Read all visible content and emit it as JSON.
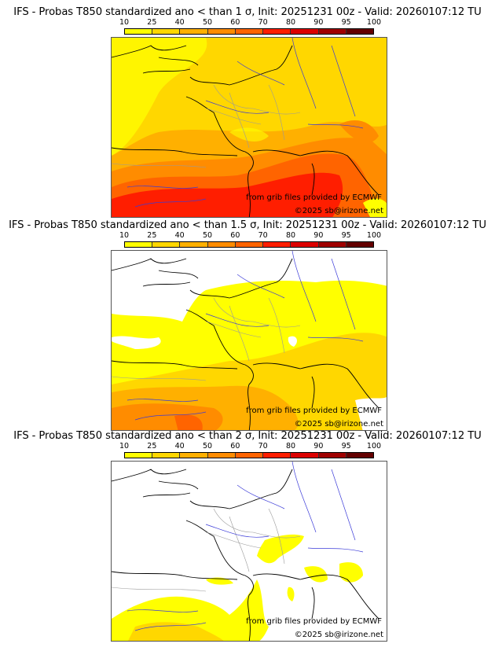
{
  "colorbar": {
    "ticks": [
      "10",
      "25",
      "40",
      "50",
      "60",
      "70",
      "80",
      "90",
      "95",
      "100"
    ],
    "colors": [
      "#ffff00",
      "#ffd700",
      "#ffb000",
      "#ff8c00",
      "#ff6400",
      "#ff1e00",
      "#dc0000",
      "#a00000",
      "#640000"
    ]
  },
  "panels": [
    {
      "title": "IFS - Probas T850  standardized ano < than 1 σ, Init: 20251231 00z - Valid: 20260107:12 TU",
      "threshold_sigma": "1",
      "credit_source": "from grib files provided by ECMWF",
      "credit_copyright": "©2025 sb@irizone.net"
    },
    {
      "title": "IFS - Probas T850  standardized ano < than 1.5 σ, Init: 20251231 00z - Valid: 20260107:12 TU",
      "threshold_sigma": "1.5",
      "credit_source": "from grib files provided by ECMWF",
      "credit_copyright": "©2025 sb@irizone.net"
    },
    {
      "title": "IFS - Probas T850  standardized ano < than 2 σ, Init: 20251231 00z - Valid: 20260107:12 TU",
      "threshold_sigma": "2",
      "credit_source": "from grib files provided by ECMWF",
      "credit_copyright": "©2025 sb@irizone.net"
    }
  ]
}
